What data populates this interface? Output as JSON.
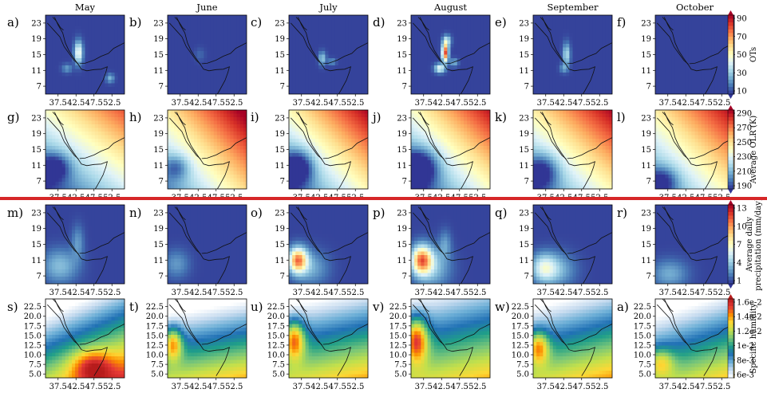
{
  "months": [
    "May",
    "June",
    "July",
    "August",
    "September",
    "October"
  ],
  "colors": {
    "separator": "#d62728",
    "coast": "#111111",
    "rdylbu_r": [
      "#313695",
      "#4575b4",
      "#74add1",
      "#abd9e9",
      "#e0f3f8",
      "#ffffbf",
      "#fee090",
      "#fdae61",
      "#f46d43",
      "#d73027",
      "#a50026"
    ],
    "humidity": [
      "#ffffff",
      "#c6dbef",
      "#6baed6",
      "#2171b5",
      "#1f9e89",
      "#78c679",
      "#c2e04c",
      "#fdd835",
      "#fb8c00",
      "#e53935",
      "#b71c1c"
    ]
  },
  "chart_data": [
    {
      "type": "heatmap",
      "row": "overshooting tops",
      "panel_labels": [
        "a)",
        "b)",
        "c)",
        "d)",
        "e)",
        "f)"
      ],
      "x_ticks": [
        "37.5",
        "42.5",
        "47.5",
        "52.5"
      ],
      "y_ticks": [
        "23",
        "19",
        "15",
        "11",
        "7"
      ],
      "xlim": [
        34,
        56
      ],
      "ylim": [
        5,
        25
      ],
      "colorbar": {
        "label": "OTs",
        "ticks": [
          "90",
          "70",
          "50",
          "30",
          "10"
        ],
        "range": [
          0,
          100
        ],
        "palette": "rdylbu_r"
      },
      "background_value": 2,
      "hotspots": [
        [
          {
            "lon": 43.2,
            "lat": 15.5,
            "value": 45,
            "sx": 0.8,
            "sy": 2.0
          },
          {
            "lon": 52.0,
            "lat": 9.0,
            "value": 20,
            "sx": 0.8,
            "sy": 0.8
          },
          {
            "lon": 40.0,
            "lat": 11.5,
            "value": 15,
            "sx": 1.0,
            "sy": 0.8
          }
        ],
        [
          {
            "lon": 43.0,
            "lat": 15.0,
            "value": 6,
            "sx": 1.0,
            "sy": 1.2
          }
        ],
        [
          {
            "lon": 43.3,
            "lat": 14.0,
            "value": 25,
            "sx": 0.7,
            "sy": 1.2
          },
          {
            "lon": 46.0,
            "lat": 13.2,
            "value": 15,
            "sx": 0.8,
            "sy": 0.6
          }
        ],
        [
          {
            "lon": 43.5,
            "lat": 15.5,
            "value": 85,
            "sx": 0.6,
            "sy": 1.6
          },
          {
            "lon": 42.0,
            "lat": 11.5,
            "value": 40,
            "sx": 1.0,
            "sy": 0.8
          },
          {
            "lon": 44.0,
            "lat": 18.5,
            "value": 30,
            "sx": 0.8,
            "sy": 1.0
          },
          {
            "lon": 46.0,
            "lat": 13.0,
            "value": 20,
            "sx": 0.8,
            "sy": 0.7
          }
        ],
        [
          {
            "lon": 43.3,
            "lat": 15.0,
            "value": 30,
            "sx": 0.7,
            "sy": 2.0
          },
          {
            "lon": 42.5,
            "lat": 11.5,
            "value": 15,
            "sx": 0.8,
            "sy": 0.8
          }
        ],
        []
      ]
    },
    {
      "type": "heatmap",
      "row": "average OLR",
      "panel_labels": [
        "g)",
        "h)",
        "i)",
        "j)",
        "k)",
        "l)"
      ],
      "x_ticks": [
        "37.5",
        "42.5",
        "47.5",
        "52.5"
      ],
      "y_ticks": [
        "23",
        "19",
        "15",
        "11",
        "7"
      ],
      "xlim": [
        34,
        56
      ],
      "ylim": [
        5,
        25
      ],
      "colorbar": {
        "label": "Average OLR (K)",
        "ticks": [
          "290",
          "270",
          "250",
          "230",
          "210",
          "190"
        ],
        "range": [
          185,
          295
        ],
        "palette": "rdylbu_r"
      },
      "fields": [
        {
          "base": 232,
          "lat_grad": 2.6,
          "lon_grad": 1.8,
          "blob": {
            "lon": 36.5,
            "lat": 10.5,
            "value": -35,
            "sx": 3.0,
            "sy": 2.5
          }
        },
        {
          "base": 250,
          "lat_grad": 2.4,
          "lon_grad": 2.4,
          "blob": {
            "lon": 36.5,
            "lat": 10.5,
            "value": -25,
            "sx": 2.5,
            "sy": 2.2
          }
        },
        {
          "base": 242,
          "lat_grad": 2.6,
          "lon_grad": 2.4,
          "blob": {
            "lon": 36.5,
            "lat": 10.5,
            "value": -45,
            "sx": 3.0,
            "sy": 3.0
          }
        },
        {
          "base": 238,
          "lat_grad": 2.6,
          "lon_grad": 2.4,
          "blob": {
            "lon": 36.5,
            "lat": 10.5,
            "value": -45,
            "sx": 3.5,
            "sy": 3.2
          }
        },
        {
          "base": 244,
          "lat_grad": 2.6,
          "lon_grad": 2.2,
          "blob": {
            "lon": 36.5,
            "lat": 9.5,
            "value": -35,
            "sx": 3.2,
            "sy": 3.0
          }
        },
        {
          "base": 246,
          "lat_grad": 2.4,
          "lon_grad": 2.2,
          "blob": {
            "lon": 36.0,
            "lat": 7.0,
            "value": -30,
            "sx": 3.0,
            "sy": 2.5
          }
        }
      ]
    },
    {
      "type": "heatmap",
      "row": "average daily precipitation",
      "panel_labels": [
        "m)",
        "n)",
        "o)",
        "p)",
        "q)",
        "r)"
      ],
      "x_ticks": [
        "37.5",
        "42.5",
        "47.5",
        "52.5"
      ],
      "y_ticks": [
        "23",
        "19",
        "15",
        "11",
        "7"
      ],
      "xlim": [
        34,
        56
      ],
      "ylim": [
        5,
        25
      ],
      "colorbar": {
        "label": "Average daily precipitation (mm/day)",
        "label_lines": [
          "Average daily",
          "precipitation (mm/day)"
        ],
        "ticks": [
          "13",
          "10",
          "7",
          "4",
          "1"
        ],
        "range": [
          0,
          14
        ],
        "palette": "rdylbu_r"
      },
      "background_value": 0.3,
      "hotspots": [
        [
          {
            "lon": 38.0,
            "lat": 9.5,
            "value": 3.0,
            "sx": 3.5,
            "sy": 3.0
          },
          {
            "lon": 43.0,
            "lat": 15.5,
            "value": 2.0,
            "sx": 1.2,
            "sy": 3.0
          }
        ],
        [
          {
            "lon": 36.5,
            "lat": 10.0,
            "value": 2.0,
            "sx": 2.5,
            "sy": 2.5
          }
        ],
        [
          {
            "lon": 36.5,
            "lat": 11.0,
            "value": 10.0,
            "sx": 1.8,
            "sy": 2.2
          },
          {
            "lon": 40.0,
            "lat": 9.0,
            "value": 2.5,
            "sx": 3.5,
            "sy": 3.0
          }
        ],
        [
          {
            "lon": 37.0,
            "lat": 11.0,
            "value": 10.0,
            "sx": 2.0,
            "sy": 2.5
          },
          {
            "lon": 40.0,
            "lat": 9.0,
            "value": 3.0,
            "sx": 3.5,
            "sy": 3.5
          },
          {
            "lon": 43.5,
            "lat": 15.0,
            "value": 2.0,
            "sx": 1.2,
            "sy": 2.5
          }
        ],
        [
          {
            "lon": 37.0,
            "lat": 9.0,
            "value": 5.0,
            "sx": 2.5,
            "sy": 2.5
          },
          {
            "lon": 41.0,
            "lat": 8.5,
            "value": 2.5,
            "sx": 3.5,
            "sy": 3.0
          }
        ],
        [
          {
            "lon": 38.0,
            "lat": 7.5,
            "value": 2.5,
            "sx": 3.5,
            "sy": 2.5
          }
        ]
      ]
    },
    {
      "type": "heatmap",
      "row": "specific humidity",
      "panel_labels": [
        "s)",
        "t)",
        "u)",
        "v)",
        "w)",
        "a)"
      ],
      "x_ticks": [
        "37.5",
        "42.5",
        "47.5",
        "52.5"
      ],
      "y_ticks": [
        "22.5",
        "20.0",
        "17.5",
        "15.0",
        "12.5",
        "10.0",
        "7.5",
        "5.0"
      ],
      "xlim": [
        34,
        56
      ],
      "ylim": [
        4,
        24.5
      ],
      "colorbar": {
        "label": "Specific humidity",
        "ticks": [
          "1.6e-2",
          "1.4e-2",
          "1.2e-2",
          "1e-2",
          "8e-3",
          "6e-3"
        ],
        "range": [
          0.005,
          0.017
        ],
        "palette": "humidity"
      },
      "fields": [
        {
          "base": 0.0095,
          "lat_grad": -0.00045,
          "lon_grad": 0.00018,
          "blob": {
            "lon": 47.0,
            "lat": 7.0,
            "value": 0.004,
            "sx": 4.0,
            "sy": 3.0
          }
        },
        {
          "base": 0.0085,
          "lat_grad": -0.00045,
          "lon_grad": 8e-05,
          "blob": {
            "lon": 35.5,
            "lat": 13.0,
            "value": 0.006,
            "sx": 1.8,
            "sy": 3.0
          }
        },
        {
          "base": 0.0092,
          "lat_grad": -0.0004,
          "lon_grad": 8e-05,
          "blob": {
            "lon": 35.5,
            "lat": 14.0,
            "value": 0.0065,
            "sx": 2.0,
            "sy": 3.5
          }
        },
        {
          "base": 0.0095,
          "lat_grad": -0.00035,
          "lon_grad": 8e-05,
          "blob": {
            "lon": 35.5,
            "lat": 14.0,
            "value": 0.007,
            "sx": 2.2,
            "sy": 4.0
          }
        },
        {
          "base": 0.0092,
          "lat_grad": -0.0004,
          "lon_grad": 0.0001,
          "blob": {
            "lon": 35.5,
            "lat": 12.0,
            "value": 0.0055,
            "sx": 2.0,
            "sy": 3.0
          }
        },
        {
          "base": 0.0085,
          "lat_grad": -0.0004,
          "lon_grad": 0.00012,
          "blob": {
            "lon": 35.5,
            "lat": 8.0,
            "value": 0.0035,
            "sx": 2.5,
            "sy": 2.5
          }
        }
      ]
    }
  ]
}
